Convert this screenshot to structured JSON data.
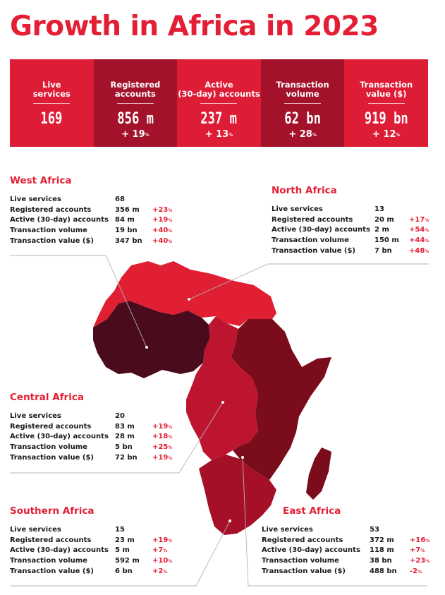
{
  "title": "Growth in Africa in 2023",
  "colors": {
    "accent": "#e41e34",
    "panel_light": "#dd1c35",
    "panel_dark": "#a3112a"
  },
  "summary": [
    {
      "label_line1": "Live",
      "label_line2": "services",
      "value": "169",
      "growth": ""
    },
    {
      "label_line1": "Registered",
      "label_line2": "accounts",
      "value": "856 m",
      "growth": "+ 19",
      "growth_unit": "%"
    },
    {
      "label_line1": "Active",
      "label_line2": "(30-day) accounts",
      "value": "237 m",
      "growth": "+ 13",
      "growth_unit": "%"
    },
    {
      "label_line1": "Transaction",
      "label_line2": "volume",
      "value": "62 bn",
      "growth": "+ 28",
      "growth_unit": "%"
    },
    {
      "label_line1": "Transaction",
      "label_line2": "value ($)",
      "value": "919 bn",
      "growth": "+ 12",
      "growth_unit": "%"
    }
  ],
  "regions": {
    "west": {
      "name": "West Africa",
      "rows": [
        {
          "label": "Live services",
          "value": "68",
          "change": ""
        },
        {
          "label": "Registered accounts",
          "value": "356 m",
          "change": "+23",
          "unit": "%"
        },
        {
          "label": "Active (30-day) accounts",
          "value": "84 m",
          "change": "+19",
          "unit": "%"
        },
        {
          "label": "Transaction volume",
          "value": "19 bn",
          "change": "+40",
          "unit": "%"
        },
        {
          "label": "Transaction value ($)",
          "value": "347 bn",
          "change": "+40",
          "unit": "%"
        }
      ]
    },
    "north": {
      "name": "North Africa",
      "rows": [
        {
          "label": "Live services",
          "value": "13",
          "change": ""
        },
        {
          "label": "Registered accounts",
          "value": "20 m",
          "change": "+17",
          "unit": "%"
        },
        {
          "label": "Active (30-day) accounts",
          "value": "2 m",
          "change": "+54",
          "unit": "%"
        },
        {
          "label": "Transaction volume",
          "value": "150 m",
          "change": "+44",
          "unit": "%"
        },
        {
          "label": "Transaction value ($)",
          "value": "7 bn",
          "change": "+48",
          "unit": "%"
        }
      ]
    },
    "central": {
      "name": "Central Africa",
      "rows": [
        {
          "label": "Live services",
          "value": "20",
          "change": ""
        },
        {
          "label": "Registered accounts",
          "value": "83 m",
          "change": "+19",
          "unit": "%"
        },
        {
          "label": "Active (30-day) accounts",
          "value": "28 m",
          "change": "+18",
          "unit": "%"
        },
        {
          "label": "Transaction volume",
          "value": "5 bn",
          "change": "+25",
          "unit": "%"
        },
        {
          "label": "Transaction value ($)",
          "value": "72 bn",
          "change": "+19",
          "unit": "%"
        }
      ]
    },
    "southern": {
      "name": "Southern Africa",
      "rows": [
        {
          "label": "Live services",
          "value": "15",
          "change": ""
        },
        {
          "label": "Registered accounts",
          "value": "23 m",
          "change": "+19",
          "unit": "%"
        },
        {
          "label": "Active (30-day) accounts",
          "value": "5 m",
          "change": "+7",
          "unit": "%"
        },
        {
          "label": "Transaction volume",
          "value": "592 m",
          "change": "+10",
          "unit": "%"
        },
        {
          "label": "Transaction value ($)",
          "value": "6 bn",
          "change": "+2",
          "unit": "%"
        }
      ]
    },
    "east": {
      "name": "East Africa",
      "rows": [
        {
          "label": "Live services",
          "value": "53",
          "change": ""
        },
        {
          "label": "Registered accounts",
          "value": "372 m",
          "change": "+16",
          "unit": "%"
        },
        {
          "label": "Active (30-day) accounts",
          "value": "118 m",
          "change": "+7",
          "unit": "%"
        },
        {
          "label": "Transaction volume",
          "value": "38 bn",
          "change": "+23",
          "unit": "%"
        },
        {
          "label": "Transaction value ($)",
          "value": "488 bn",
          "change": "-2",
          "unit": "%"
        }
      ]
    }
  }
}
